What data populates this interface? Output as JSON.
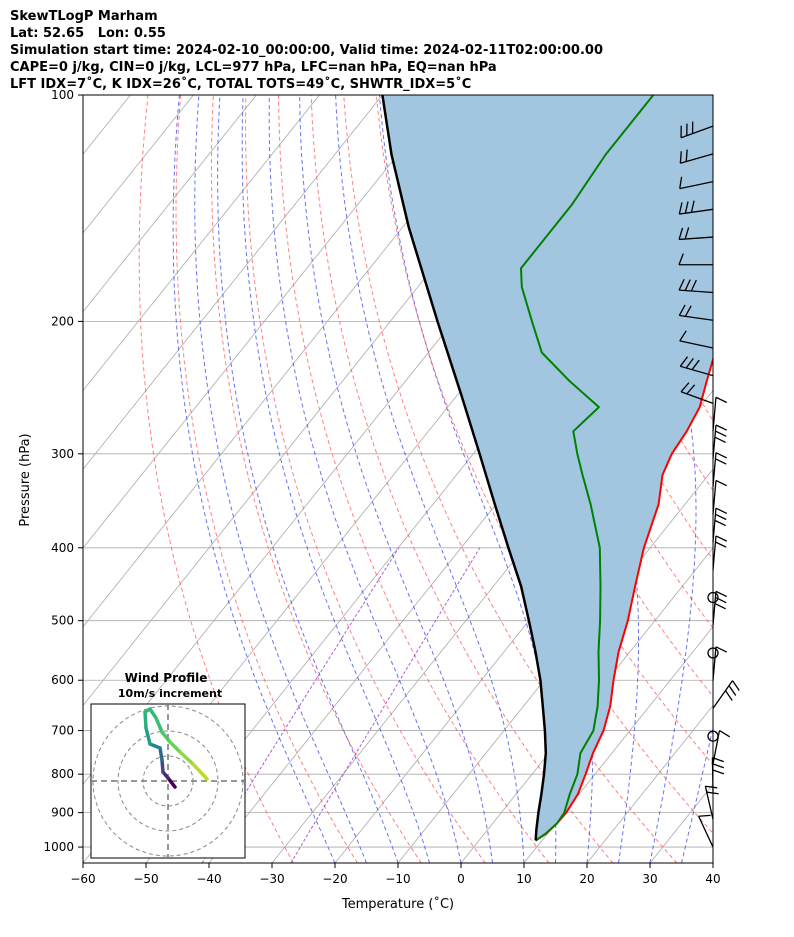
{
  "header": {
    "line1": "SkewTLogP Marham",
    "line2": "Lat: 52.65   Lon: 0.55",
    "line3": "Simulation start time: 2024-02-10_00:00:00, Valid time: 2024-02-11T02:00:00.00",
    "line4": "CAPE=0 j/kg, CIN=0 j/kg, LCL=977 hPa, LFC=nan hPa, EQ=nan hPa",
    "line5": "LFT IDX=7˚C, K IDX=26˚C, TOTAL TOTS=49˚C, SHWTR_IDX=5˚C"
  },
  "chart_data": {
    "type": "line",
    "subtype": "skew-t log-p",
    "xlabel": "Temperature (˚C)",
    "ylabel": "Pressure (hPa)",
    "xlim": [
      -60,
      40
    ],
    "ylim": [
      1050,
      100
    ],
    "y_scale": "log",
    "x_ticks": [
      -60,
      -50,
      -40,
      -30,
      -20,
      -10,
      0,
      10,
      20,
      30,
      40
    ],
    "x_tick_labels": [
      "−60",
      "−50",
      "−40",
      "−30",
      "−20",
      "−10",
      "0",
      "10",
      "20",
      "30",
      "40"
    ],
    "y_ticks": [
      1000,
      900,
      800,
      700,
      600,
      500,
      400,
      300,
      200,
      100
    ],
    "y_tick_labels": [
      "1000",
      "900",
      "800",
      "700",
      "600",
      "500",
      "400",
      "300",
      "200",
      "100"
    ],
    "grid": true,
    "colors": {
      "temperature": "#ff0000",
      "dewpoint": "#008000",
      "parcel": "#000000",
      "shading": "#a3c6e0",
      "dry_adiabats": "#ff5555",
      "moist_adiabats": "#3344ee",
      "mixing_ratio": "#9933cc",
      "isotherms": "#aaaaaa"
    },
    "series": [
      {
        "role": "temperature",
        "pressure": [
          980,
          960,
          930,
          900,
          850,
          800,
          750,
          700,
          650,
          600,
          550,
          500,
          450,
          400,
          350,
          320,
          300,
          280,
          260,
          240,
          220,
          200,
          180,
          160,
          140,
          120,
          110,
          100
        ],
        "values": [
          9.0,
          9.8,
          10.2,
          10.3,
          9.8,
          8.5,
          7.0,
          5.8,
          3.8,
          1.0,
          -1.8,
          -4.3,
          -7.5,
          -11.0,
          -14.2,
          -17.3,
          -18.5,
          -19.0,
          -20.0,
          -22.2,
          -24.5,
          -27.0,
          -28.0,
          -29.5,
          -31.0,
          -32.3,
          -32.0,
          -31.5
        ]
      },
      {
        "role": "dewpoint",
        "pressure": [
          980,
          960,
          930,
          900,
          850,
          800,
          750,
          700,
          650,
          600,
          550,
          500,
          450,
          400,
          350,
          320,
          300,
          280,
          260,
          240,
          220,
          200,
          180,
          170,
          160,
          140,
          120,
          100
        ],
        "values": [
          9.0,
          9.7,
          10.2,
          10.0,
          8.5,
          7.2,
          5.0,
          4.2,
          1.8,
          -1.3,
          -5.0,
          -8.7,
          -13.0,
          -18.0,
          -25.0,
          -30.0,
          -33.5,
          -37.0,
          -36.0,
          -44.0,
          -52.0,
          -57.5,
          -63.5,
          -66.0,
          -66.0,
          -66.0,
          -67.0,
          -67.0
        ]
      },
      {
        "role": "parcel",
        "pressure": [
          980,
          950,
          900,
          850,
          800,
          750,
          700,
          650,
          600,
          550,
          500,
          450,
          400,
          350,
          300,
          250,
          200,
          150,
          120,
          100
        ],
        "values": [
          9.0,
          7.8,
          5.9,
          4.0,
          1.9,
          -0.5,
          -3.5,
          -6.9,
          -10.6,
          -15.0,
          -20.0,
          -25.6,
          -32.5,
          -40.2,
          -49.0,
          -59.5,
          -72.5,
          -89.0,
          -101.0,
          -110.0
        ]
      }
    ],
    "wind_barbs": {
      "count": 27
    },
    "inset": {
      "title": "Wind Profile",
      "subtitle": "10m/s increment"
    }
  }
}
